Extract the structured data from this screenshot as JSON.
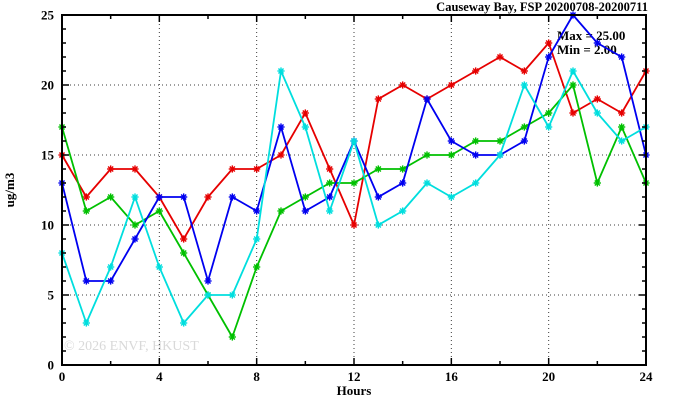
{
  "title": "Causeway Bay, FSP 20200708-20200711",
  "legend": {
    "max_label": "Max = 25.00",
    "min_label": "Min = 2.00"
  },
  "watermark": "© 2026 ENVF, HKUST",
  "chart_data": {
    "type": "line",
    "title": "Causeway Bay, FSP 20200708-20200711",
    "xlabel": "Hours",
    "ylabel": "ug/m3",
    "xlim": [
      0,
      24
    ],
    "ylim": [
      0,
      25
    ],
    "xticks": [
      0,
      4,
      8,
      12,
      16,
      20,
      24
    ],
    "x_minor_step": 2,
    "yticks": [
      0,
      5,
      10,
      15,
      20,
      25
    ],
    "y_minor_step": 1,
    "grid": true,
    "legend_position": "top-right-inside",
    "annotations": [
      "Max = 25.00",
      "Min = 2.00"
    ],
    "x": [
      0,
      1,
      2,
      3,
      4,
      5,
      6,
      7,
      8,
      9,
      10,
      11,
      12,
      13,
      14,
      15,
      16,
      17,
      18,
      19,
      20,
      21,
      22,
      23,
      24
    ],
    "series": [
      {
        "name": "red-series",
        "color": "#e60000",
        "values": [
          15,
          12,
          14,
          14,
          12,
          9,
          12,
          14,
          14,
          15,
          18,
          14,
          10,
          19,
          20,
          19,
          20,
          21,
          22,
          21,
          23,
          18,
          19,
          18,
          21
        ]
      },
      {
        "name": "green-series",
        "color": "#00c000",
        "values": [
          17,
          11,
          12,
          10,
          11,
          8,
          5,
          2,
          7,
          11,
          12,
          13,
          13,
          14,
          14,
          15,
          15,
          16,
          16,
          17,
          18,
          20,
          13,
          17,
          13
        ]
      },
      {
        "name": "blue-series",
        "color": "#0000f0",
        "values": [
          13,
          6,
          6,
          9,
          12,
          12,
          6,
          12,
          11,
          17,
          11,
          12,
          16,
          12,
          13,
          19,
          16,
          15,
          15,
          16,
          22,
          25,
          23,
          22,
          15
        ]
      },
      {
        "name": "cyan-series",
        "color": "#00dede",
        "values": [
          8,
          3,
          7,
          12,
          7,
          3,
          5,
          5,
          9,
          21,
          17,
          11,
          16,
          10,
          11,
          13,
          12,
          13,
          15,
          20,
          17,
          21,
          18,
          16,
          17
        ]
      }
    ]
  },
  "colors": {
    "grid": "#3c3c3c",
    "border": "#000000",
    "text": "#000000",
    "watermark": "#d9d9d9"
  }
}
